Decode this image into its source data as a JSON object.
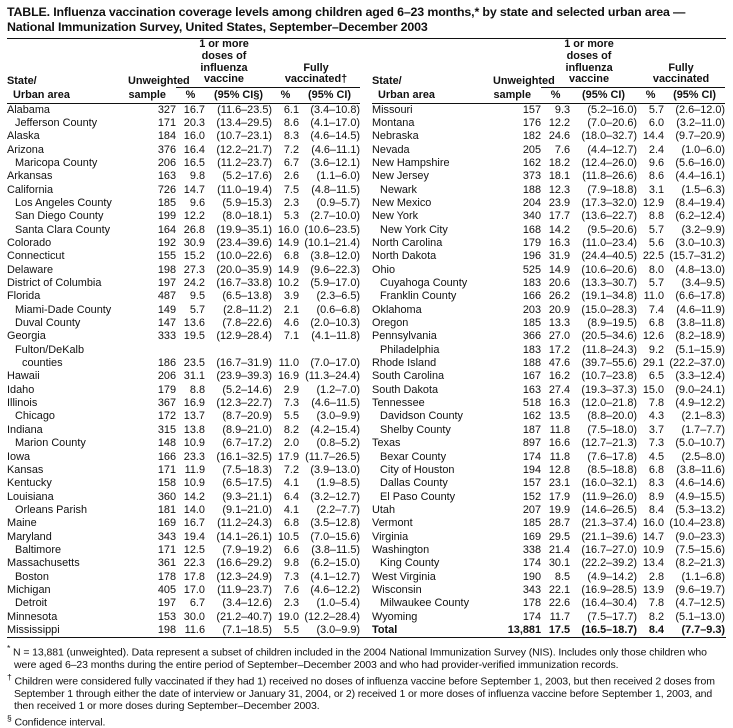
{
  "title": "TABLE. Influenza vaccination coverage levels among children aged 6–23 months,* by state and selected urban area — National Immunization Survey, United States, September–December 2003",
  "header": {
    "state_line1": "State/",
    "state_line2": "Urban area",
    "unweighted_line1": "Unweighted",
    "unweighted_line2": "sample",
    "group_doses_lines": [
      "1 or more",
      "doses of",
      "influenza",
      "vaccine"
    ],
    "fully_left_lines": [
      "Fully",
      "vaccinated†"
    ],
    "fully_right_lines": [
      "Fully",
      "vaccinated"
    ],
    "pct": "%",
    "ci_left": "(95% CI§)",
    "ci_right": "(95% CI)"
  },
  "left_rows": [
    {
      "n": "Alabama",
      "i": 0,
      "s": "327",
      "p1": "16.7",
      "c1": "(11.6–23.5)",
      "p2": "6.1",
      "c2": "(3.4–10.8)"
    },
    {
      "n": "Jefferson County",
      "i": 1,
      "s": "171",
      "p1": "20.3",
      "c1": "(13.4–29.5)",
      "p2": "8.6",
      "c2": "(4.1–17.0)"
    },
    {
      "n": "Alaska",
      "i": 0,
      "s": "184",
      "p1": "16.0",
      "c1": "(10.7–23.1)",
      "p2": "8.3",
      "c2": "(4.6–14.5)"
    },
    {
      "n": "Arizona",
      "i": 0,
      "s": "376",
      "p1": "16.4",
      "c1": "(12.2–21.7)",
      "p2": "7.2",
      "c2": "(4.6–11.1)"
    },
    {
      "n": "Maricopa County",
      "i": 1,
      "s": "206",
      "p1": "16.5",
      "c1": "(11.2–23.7)",
      "p2": "6.7",
      "c2": "(3.6–12.1)"
    },
    {
      "n": "Arkansas",
      "i": 0,
      "s": "163",
      "p1": "9.8",
      "c1": "(5.2–17.6)",
      "p2": "2.6",
      "c2": "(1.1–6.0)"
    },
    {
      "n": "California",
      "i": 0,
      "s": "726",
      "p1": "14.7",
      "c1": "(11.0–19.4)",
      "p2": "7.5",
      "c2": "(4.8–11.5)"
    },
    {
      "n": "Los Angeles County",
      "i": 1,
      "s": "185",
      "p1": "9.6",
      "c1": "(5.9–15.3)",
      "p2": "2.3",
      "c2": "(0.9–5.7)"
    },
    {
      "n": "San Diego County",
      "i": 1,
      "s": "199",
      "p1": "12.2",
      "c1": "(8.0–18.1)",
      "p2": "5.3",
      "c2": "(2.7–10.0)"
    },
    {
      "n": "Santa Clara County",
      "i": 1,
      "s": "164",
      "p1": "26.8",
      "c1": "(19.9–35.1)",
      "p2": "16.0",
      "c2": "(10.6–23.5)"
    },
    {
      "n": "Colorado",
      "i": 0,
      "s": "192",
      "p1": "30.9",
      "c1": "(23.4–39.6)",
      "p2": "14.9",
      "c2": "(10.1–21.4)"
    },
    {
      "n": "Connecticut",
      "i": 0,
      "s": "155",
      "p1": "15.2",
      "c1": "(10.0–22.6)",
      "p2": "6.8",
      "c2": "(3.8–12.0)"
    },
    {
      "n": "Delaware",
      "i": 0,
      "s": "198",
      "p1": "27.3",
      "c1": "(20.0–35.9)",
      "p2": "14.9",
      "c2": "(9.6–22.3)"
    },
    {
      "n": "District of Columbia",
      "i": 0,
      "s": "197",
      "p1": "24.2",
      "c1": "(16.7–33.8)",
      "p2": "10.2",
      "c2": "(5.9–17.0)"
    },
    {
      "n": "Florida",
      "i": 0,
      "s": "487",
      "p1": "9.5",
      "c1": "(6.5–13.8)",
      "p2": "3.9",
      "c2": "(2.3–6.5)"
    },
    {
      "n": "Miami-Dade County",
      "i": 1,
      "s": "149",
      "p1": "5.7",
      "c1": "(2.8–11.2)",
      "p2": "2.1",
      "c2": "(0.6–6.8)"
    },
    {
      "n": "Duval County",
      "i": 1,
      "s": "147",
      "p1": "13.6",
      "c1": "(7.8–22.6)",
      "p2": "4.6",
      "c2": "(2.0–10.3)"
    },
    {
      "n": "Georgia",
      "i": 0,
      "s": "333",
      "p1": "19.5",
      "c1": "(12.9–28.4)",
      "p2": "7.1",
      "c2": "(4.1–11.8)"
    },
    {
      "n": "Fulton/DeKalb",
      "i": 1,
      "s": "",
      "p1": "",
      "c1": "",
      "p2": "",
      "c2": ""
    },
    {
      "n": "counties",
      "i": 2,
      "s": "186",
      "p1": "23.5",
      "c1": "(16.7–31.9)",
      "p2": "11.0",
      "c2": "(7.0–17.0)"
    },
    {
      "n": "Hawaii",
      "i": 0,
      "s": "206",
      "p1": "31.1",
      "c1": "(23.9–39.3)",
      "p2": "16.9",
      "c2": "(11.3–24.4)"
    },
    {
      "n": "Idaho",
      "i": 0,
      "s": "179",
      "p1": "8.8",
      "c1": "(5.2–14.6)",
      "p2": "2.9",
      "c2": "(1.2–7.0)"
    },
    {
      "n": "Illinois",
      "i": 0,
      "s": "367",
      "p1": "16.9",
      "c1": "(12.3–22.7)",
      "p2": "7.3",
      "c2": "(4.6–11.5)"
    },
    {
      "n": "Chicago",
      "i": 1,
      "s": "172",
      "p1": "13.7",
      "c1": "(8.7–20.9)",
      "p2": "5.5",
      "c2": "(3.0–9.9)"
    },
    {
      "n": "Indiana",
      "i": 0,
      "s": "315",
      "p1": "13.8",
      "c1": "(8.9–21.0)",
      "p2": "8.2",
      "c2": "(4.2–15.4)"
    },
    {
      "n": "Marion County",
      "i": 1,
      "s": "148",
      "p1": "10.9",
      "c1": "(6.7–17.2)",
      "p2": "2.0",
      "c2": "(0.8–5.2)"
    },
    {
      "n": "Iowa",
      "i": 0,
      "s": "166",
      "p1": "23.3",
      "c1": "(16.1–32.5)",
      "p2": "17.9",
      "c2": "(11.7–26.5)"
    },
    {
      "n": "Kansas",
      "i": 0,
      "s": "171",
      "p1": "11.9",
      "c1": "(7.5–18.3)",
      "p2": "7.2",
      "c2": "(3.9–13.0)"
    },
    {
      "n": "Kentucky",
      "i": 0,
      "s": "158",
      "p1": "10.9",
      "c1": "(6.5–17.5)",
      "p2": "4.1",
      "c2": "(1.9–8.5)"
    },
    {
      "n": "Louisiana",
      "i": 0,
      "s": "360",
      "p1": "14.2",
      "c1": "(9.3–21.1)",
      "p2": "6.4",
      "c2": "(3.2–12.7)"
    },
    {
      "n": "Orleans Parish",
      "i": 1,
      "s": "181",
      "p1": "14.0",
      "c1": "(9.1–21.0)",
      "p2": "4.1",
      "c2": "(2.2–7.7)"
    },
    {
      "n": "Maine",
      "i": 0,
      "s": "169",
      "p1": "16.7",
      "c1": "(11.2–24.3)",
      "p2": "6.8",
      "c2": "(3.5–12.8)"
    },
    {
      "n": "Maryland",
      "i": 0,
      "s": "343",
      "p1": "19.4",
      "c1": "(14.1–26.1)",
      "p2": "10.5",
      "c2": "(7.0–15.6)"
    },
    {
      "n": "Baltimore",
      "i": 1,
      "s": "171",
      "p1": "12.5",
      "c1": "(7.9–19.2)",
      "p2": "6.6",
      "c2": "(3.8–11.5)"
    },
    {
      "n": "Massachusetts",
      "i": 0,
      "s": "361",
      "p1": "22.3",
      "c1": "(16.6–29.2)",
      "p2": "9.8",
      "c2": "(6.2–15.0)"
    },
    {
      "n": "Boston",
      "i": 1,
      "s": "178",
      "p1": "17.8",
      "c1": "(12.3–24.9)",
      "p2": "7.3",
      "c2": "(4.1–12.7)"
    },
    {
      "n": "Michigan",
      "i": 0,
      "s": "405",
      "p1": "17.0",
      "c1": "(11.9–23.7)",
      "p2": "7.6",
      "c2": "(4.6–12.2)"
    },
    {
      "n": "Detroit",
      "i": 1,
      "s": "197",
      "p1": "6.7",
      "c1": "(3.4–12.6)",
      "p2": "2.3",
      "c2": "(1.0–5.4)"
    },
    {
      "n": "Minnesota",
      "i": 0,
      "s": "153",
      "p1": "30.0",
      "c1": "(21.2–40.7)",
      "p2": "19.0",
      "c2": "(12.2–28.4)"
    },
    {
      "n": "Mississippi",
      "i": 0,
      "s": "198",
      "p1": "11.6",
      "c1": "(7.1–18.5)",
      "p2": "5.5",
      "c2": "(3.0–9.9)"
    }
  ],
  "right_rows": [
    {
      "n": "Missouri",
      "i": 0,
      "s": "157",
      "p1": "9.3",
      "c1": "(5.2–16.0)",
      "p2": "5.7",
      "c2": "(2.6–12.0)"
    },
    {
      "n": "Montana",
      "i": 0,
      "s": "176",
      "p1": "12.2",
      "c1": "(7.0–20.6)",
      "p2": "6.0",
      "c2": "(3.2–11.0)"
    },
    {
      "n": "Nebraska",
      "i": 0,
      "s": "182",
      "p1": "24.6",
      "c1": "(18.0–32.7)",
      "p2": "14.4",
      "c2": "(9.7–20.9)"
    },
    {
      "n": "Nevada",
      "i": 0,
      "s": "205",
      "p1": "7.6",
      "c1": "(4.4–12.7)",
      "p2": "2.4",
      "c2": "(1.0–6.0)"
    },
    {
      "n": "New Hampshire",
      "i": 0,
      "s": "162",
      "p1": "18.2",
      "c1": "(12.4–26.0)",
      "p2": "9.6",
      "c2": "(5.6–16.0)"
    },
    {
      "n": "New Jersey",
      "i": 0,
      "s": "373",
      "p1": "18.1",
      "c1": "(11.8–26.6)",
      "p2": "8.6",
      "c2": "(4.4–16.1)"
    },
    {
      "n": "Newark",
      "i": 1,
      "s": "188",
      "p1": "12.3",
      "c1": "(7.9–18.8)",
      "p2": "3.1",
      "c2": "(1.5–6.3)"
    },
    {
      "n": "New Mexico",
      "i": 0,
      "s": "204",
      "p1": "23.9",
      "c1": "(17.3–32.0)",
      "p2": "12.9",
      "c2": "(8.4–19.4)"
    },
    {
      "n": "New York",
      "i": 0,
      "s": "340",
      "p1": "17.7",
      "c1": "(13.6–22.7)",
      "p2": "8.8",
      "c2": "(6.2–12.4)"
    },
    {
      "n": "New York City",
      "i": 1,
      "s": "168",
      "p1": "14.2",
      "c1": "(9.5–20.6)",
      "p2": "5.7",
      "c2": "(3.2–9.9)"
    },
    {
      "n": "North Carolina",
      "i": 0,
      "s": "179",
      "p1": "16.3",
      "c1": "(11.0–23.4)",
      "p2": "5.6",
      "c2": "(3.0–10.3)"
    },
    {
      "n": "North Dakota",
      "i": 0,
      "s": "196",
      "p1": "31.9",
      "c1": "(24.4–40.5)",
      "p2": "22.5",
      "c2": "(15.7–31.2)"
    },
    {
      "n": "Ohio",
      "i": 0,
      "s": "525",
      "p1": "14.9",
      "c1": "(10.6–20.6)",
      "p2": "8.0",
      "c2": "(4.8–13.0)"
    },
    {
      "n": "Cuyahoga County",
      "i": 1,
      "s": "183",
      "p1": "20.6",
      "c1": "(13.3–30.7)",
      "p2": "5.7",
      "c2": "(3.4–9.5)"
    },
    {
      "n": "Franklin County",
      "i": 1,
      "s": "166",
      "p1": "26.2",
      "c1": "(19.1–34.8)",
      "p2": "11.0",
      "c2": "(6.6–17.8)"
    },
    {
      "n": "Oklahoma",
      "i": 0,
      "s": "203",
      "p1": "20.9",
      "c1": "(15.0–28.3)",
      "p2": "7.4",
      "c2": "(4.6–11.9)"
    },
    {
      "n": "Oregon",
      "i": 0,
      "s": "185",
      "p1": "13.3",
      "c1": "(8.9–19.5)",
      "p2": "6.8",
      "c2": "(3.8–11.8)"
    },
    {
      "n": "Pennsylvania",
      "i": 0,
      "s": "366",
      "p1": "27.0",
      "c1": "(20.5–34.6)",
      "p2": "12.6",
      "c2": "(8.2–18.9)"
    },
    {
      "n": "Philadelphia",
      "i": 1,
      "s": "183",
      "p1": "17.2",
      "c1": "(11.8–24.3)",
      "p2": "9.2",
      "c2": "(5.1–15.9)"
    },
    {
      "n": "Rhode Island",
      "i": 0,
      "s": "188",
      "p1": "47.6",
      "c1": "(39.7–55.6)",
      "p2": "29.1",
      "c2": "(22.2–37.0)"
    },
    {
      "n": "South Carolina",
      "i": 0,
      "s": "167",
      "p1": "16.2",
      "c1": "(10.7–23.8)",
      "p2": "6.5",
      "c2": "(3.3–12.4)"
    },
    {
      "n": "South Dakota",
      "i": 0,
      "s": "163",
      "p1": "27.4",
      "c1": "(19.3–37.3)",
      "p2": "15.0",
      "c2": "(9.0–24.1)"
    },
    {
      "n": "Tennessee",
      "i": 0,
      "s": "518",
      "p1": "16.3",
      "c1": "(12.0–21.8)",
      "p2": "7.8",
      "c2": "(4.9–12.2)"
    },
    {
      "n": "Davidson County",
      "i": 1,
      "s": "162",
      "p1": "13.5",
      "c1": "(8.8–20.0)",
      "p2": "4.3",
      "c2": "(2.1–8.3)"
    },
    {
      "n": "Shelby County",
      "i": 1,
      "s": "187",
      "p1": "11.8",
      "c1": "(7.5–18.0)",
      "p2": "3.7",
      "c2": "(1.7–7.7)"
    },
    {
      "n": "Texas",
      "i": 0,
      "s": "897",
      "p1": "16.6",
      "c1": "(12.7–21.3)",
      "p2": "7.3",
      "c2": "(5.0–10.7)"
    },
    {
      "n": "Bexar County",
      "i": 1,
      "s": "174",
      "p1": "11.8",
      "c1": "(7.6–17.8)",
      "p2": "4.5",
      "c2": "(2.5–8.0)"
    },
    {
      "n": "City of Houston",
      "i": 1,
      "s": "194",
      "p1": "12.8",
      "c1": "(8.5–18.8)",
      "p2": "6.8",
      "c2": "(3.8–11.6)"
    },
    {
      "n": "Dallas County",
      "i": 1,
      "s": "157",
      "p1": "23.1",
      "c1": "(16.0–32.1)",
      "p2": "8.3",
      "c2": "(4.6–14.6)"
    },
    {
      "n": "El Paso County",
      "i": 1,
      "s": "152",
      "p1": "17.9",
      "c1": "(11.9–26.0)",
      "p2": "8.9",
      "c2": "(4.9–15.5)"
    },
    {
      "n": "Utah",
      "i": 0,
      "s": "207",
      "p1": "19.9",
      "c1": "(14.6–26.5)",
      "p2": "8.4",
      "c2": "(5.3–13.2)"
    },
    {
      "n": "Vermont",
      "i": 0,
      "s": "185",
      "p1": "28.7",
      "c1": "(21.3–37.4)",
      "p2": "16.0",
      "c2": "(10.4–23.8)"
    },
    {
      "n": "Virginia",
      "i": 0,
      "s": "169",
      "p1": "29.5",
      "c1": "(21.1–39.6)",
      "p2": "14.7",
      "c2": "(9.0–23.3)"
    },
    {
      "n": "Washington",
      "i": 0,
      "s": "338",
      "p1": "21.4",
      "c1": "(16.7–27.0)",
      "p2": "10.9",
      "c2": "(7.5–15.6)"
    },
    {
      "n": "King County",
      "i": 1,
      "s": "174",
      "p1": "30.1",
      "c1": "(22.2–39.2)",
      "p2": "13.4",
      "c2": "(8.2–21.3)"
    },
    {
      "n": "West Virginia",
      "i": 0,
      "s": "190",
      "p1": "8.5",
      "c1": "(4.9–14.2)",
      "p2": "2.8",
      "c2": "(1.1–6.8)"
    },
    {
      "n": "Wisconsin",
      "i": 0,
      "s": "343",
      "p1": "22.1",
      "c1": "(16.9–28.5)",
      "p2": "13.9",
      "c2": "(9.6–19.7)"
    },
    {
      "n": "Milwaukee County",
      "i": 1,
      "s": "178",
      "p1": "22.6",
      "c1": "(16.4–30.4)",
      "p2": "7.8",
      "c2": "(4.7–12.5)"
    },
    {
      "n": "Wyoming",
      "i": 0,
      "s": "174",
      "p1": "11.7",
      "c1": "(7.5–17.7)",
      "p2": "8.2",
      "c2": "(5.1–13.0)"
    },
    {
      "n": "Total",
      "i": 0,
      "s": "13,881",
      "p1": "17.5",
      "c1": "(16.5–18.7)",
      "p2": "8.4",
      "c2": "(7.7–9.3)",
      "b": true
    }
  ],
  "footnotes": [
    {
      "marker": "*",
      "text": "N = 13,881 (unweighted). Data represent a subset of children included in the 2004 National Immunization Survey (NIS). Includes only those children who were aged 6–23 months during the entire period of September–December 2003 and who had provider-verified immunization records."
    },
    {
      "marker": "†",
      "text": "Children were considered fully vaccinated if they had 1) received no doses of influenza vaccine before September 1, 2003, but then received 2 doses from September 1 through either the date of interview or January 31, 2004, or 2) received 1 or more doses of influenza vaccine before September 1, 2003, and then received 1 or more doses during September–December 2003."
    },
    {
      "marker": "§",
      "text": "Confidence interval."
    }
  ]
}
